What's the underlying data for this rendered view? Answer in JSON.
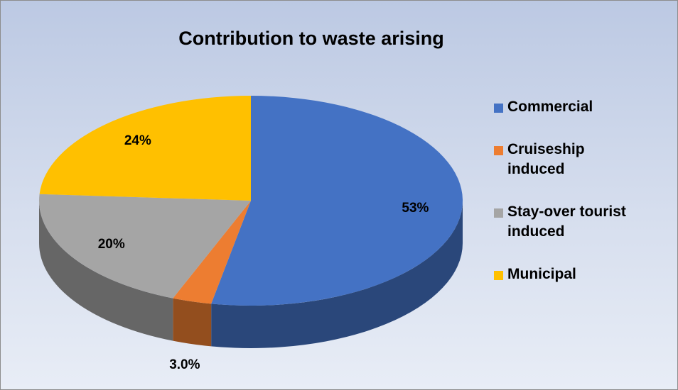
{
  "chart_data": {
    "type": "pie",
    "title": "Contribution to waste arising",
    "categories": [
      "Commercial",
      "Cruiseship induced",
      "Stay-over tourist induced",
      "Municipal"
    ],
    "values": [
      53,
      3.0,
      20,
      24
    ],
    "value_labels": [
      "53%",
      "3.0%",
      "20%",
      "24%"
    ],
    "colors": [
      "#4472c4",
      "#ed7d31",
      "#a5a5a5",
      "#ffc000"
    ],
    "legend": "right"
  }
}
